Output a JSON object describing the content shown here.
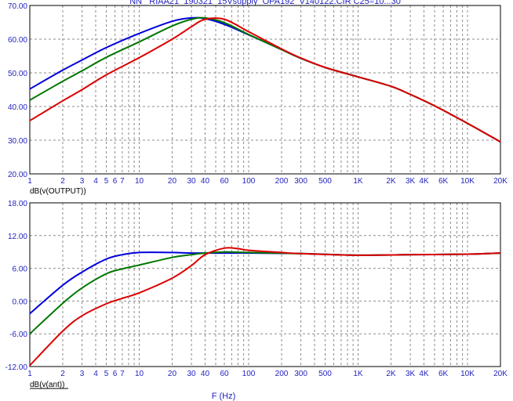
{
  "title": "NN_ RIAA21_190321_15Vsupply_OPA192_V140122.CIR C25=10...30",
  "colors": {
    "text": "#1f1fbf",
    "grid": "#8c8c8c",
    "axis": "#000000",
    "series": [
      "#0000dd",
      "#007700",
      "#dd0000"
    ]
  },
  "chart_data": [
    {
      "type": "line",
      "xscale": "log",
      "xlim": [
        1,
        20000
      ],
      "ylim": [
        20,
        70
      ],
      "yticks": [
        20,
        30,
        40,
        50,
        60,
        70
      ],
      "ytick_labels": [
        "20.00",
        "30.00",
        "40.00",
        "50.00",
        "60.00",
        "70.00"
      ],
      "xtick_values": [
        1,
        2,
        3,
        4,
        5,
        6,
        7,
        10,
        20,
        30,
        40,
        60,
        100,
        200,
        300,
        500,
        1000,
        2000,
        3000,
        4000,
        6000,
        10000,
        20000
      ],
      "xtick_labels": [
        "1",
        "2",
        "3",
        "4",
        "5",
        "6",
        "7",
        "10",
        "20",
        "30",
        "40",
        "60",
        "100",
        "200",
        "300",
        "500",
        "1K",
        "2K",
        "3K",
        "4K",
        "6K",
        "10K",
        "20K"
      ],
      "ylabel": "dB(v(OUTPUT))",
      "grid": true,
      "series": [
        {
          "color": "#0000dd",
          "x": [
            1,
            2,
            3,
            5,
            10,
            20,
            30,
            40,
            60,
            100,
            200,
            300,
            500,
            1000,
            2000,
            3000,
            5000,
            10000,
            20000
          ],
          "y": [
            45.2,
            50.8,
            53.8,
            57.5,
            61.7,
            65.3,
            66.3,
            66.1,
            64.4,
            61.3,
            56.9,
            54.3,
            51.6,
            48.8,
            46.0,
            43.6,
            40.2,
            35.0,
            29.5
          ]
        },
        {
          "color": "#007700",
          "x": [
            1,
            2,
            3,
            5,
            10,
            20,
            30,
            40,
            60,
            100,
            200,
            300,
            500,
            1000,
            2000,
            3000,
            5000,
            10000,
            20000
          ],
          "y": [
            41.9,
            47.5,
            50.6,
            54.6,
            59.2,
            63.9,
            65.9,
            66.3,
            64.9,
            61.4,
            56.9,
            54.3,
            51.6,
            48.8,
            46.0,
            43.6,
            40.2,
            35.0,
            29.5
          ]
        },
        {
          "color": "#dd0000",
          "x": [
            1,
            2,
            3,
            5,
            10,
            20,
            30,
            40,
            60,
            100,
            200,
            300,
            500,
            1000,
            2000,
            3000,
            5000,
            10000,
            20000
          ],
          "y": [
            35.8,
            41.7,
            45.0,
            49.4,
            54.5,
            60.0,
            63.7,
            65.9,
            65.9,
            62.2,
            57.1,
            54.4,
            51.6,
            48.8,
            46.0,
            43.6,
            40.2,
            35.0,
            29.5
          ]
        }
      ]
    },
    {
      "type": "line",
      "xscale": "log",
      "xlim": [
        1,
        20000
      ],
      "ylim": [
        -12,
        18
      ],
      "yticks": [
        -12,
        -6,
        0,
        6,
        12,
        18
      ],
      "ytick_labels": [
        "-12.00",
        "-6.00",
        "0.00",
        "6.00",
        "12.00",
        "18.00"
      ],
      "xtick_values": [
        1,
        2,
        3,
        4,
        5,
        6,
        7,
        10,
        20,
        30,
        40,
        60,
        100,
        200,
        300,
        500,
        1000,
        2000,
        3000,
        4000,
        6000,
        10000,
        20000
      ],
      "xtick_labels": [
        "1",
        "2",
        "3",
        "4",
        "5",
        "6",
        "7",
        "10",
        "20",
        "30",
        "40",
        "60",
        "100",
        "200",
        "300",
        "500",
        "1K",
        "2K",
        "3K",
        "4K",
        "6K",
        "10K",
        "20K"
      ],
      "ylabel": "dB(v(ant))",
      "xlabel": "F (Hz)",
      "grid": true,
      "series": [
        {
          "color": "#0000dd",
          "x": [
            1,
            2,
            3,
            5,
            7,
            10,
            20,
            30,
            60,
            100,
            300,
            1000,
            3000,
            10000,
            20000
          ],
          "y": [
            -2.3,
            2.9,
            5.3,
            7.7,
            8.5,
            8.9,
            8.9,
            8.8,
            8.8,
            8.8,
            8.7,
            8.4,
            8.5,
            8.6,
            8.8
          ]
        },
        {
          "color": "#007700",
          "x": [
            1,
            2,
            3,
            5,
            7,
            10,
            20,
            30,
            40,
            60,
            100,
            300,
            1000,
            3000,
            10000,
            20000
          ],
          "y": [
            -6.0,
            -0.4,
            2.4,
            5.0,
            5.9,
            6.6,
            8.0,
            8.5,
            8.8,
            9.0,
            8.9,
            8.7,
            8.4,
            8.5,
            8.6,
            8.8
          ]
        },
        {
          "color": "#dd0000",
          "x": [
            1,
            2,
            3,
            5,
            7,
            10,
            20,
            30,
            40,
            60,
            80,
            100,
            200,
            300,
            1000,
            3000,
            10000,
            20000
          ],
          "y": [
            -11.8,
            -5.5,
            -2.7,
            -0.5,
            0.5,
            1.5,
            4.2,
            6.5,
            8.5,
            9.7,
            9.6,
            9.3,
            8.9,
            8.7,
            8.4,
            8.5,
            8.6,
            8.8
          ]
        }
      ]
    }
  ]
}
